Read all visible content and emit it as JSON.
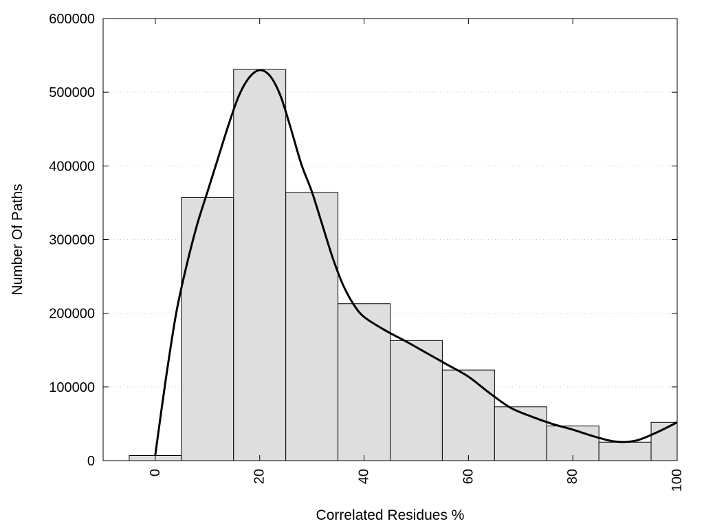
{
  "chart_data": {
    "type": "bar",
    "xlabel": "Correlated Residues %",
    "ylabel": "Number Of Paths",
    "xlim": [
      -10,
      100
    ],
    "ylim": [
      0,
      600000
    ],
    "grid": "horizontal-dotted",
    "bar_color": "#dedede",
    "x_ticks": [
      "0",
      "20",
      "40",
      "60",
      "80",
      "100"
    ],
    "y_ticks": [
      "0",
      "100000",
      "200000",
      "300000",
      "400000",
      "500000",
      "600000"
    ],
    "bar_width": 10,
    "bars": [
      {
        "x": 0,
        "value": 7000
      },
      {
        "x": 10,
        "value": 357000
      },
      {
        "x": 20,
        "value": 531000
      },
      {
        "x": 30,
        "value": 364000
      },
      {
        "x": 40,
        "value": 213000
      },
      {
        "x": 50,
        "value": 163000
      },
      {
        "x": 60,
        "value": 123000
      },
      {
        "x": 70,
        "value": 73000
      },
      {
        "x": 80,
        "value": 47000
      },
      {
        "x": 90,
        "value": 25000
      },
      {
        "x": 100,
        "value": 52000
      }
    ],
    "series": [
      {
        "type": "line",
        "color": "#000000",
        "points": [
          [
            0,
            8000
          ],
          [
            2,
            110000
          ],
          [
            4,
            200000
          ],
          [
            6,
            265000
          ],
          [
            8,
            320000
          ],
          [
            10,
            365000
          ],
          [
            12,
            410000
          ],
          [
            14,
            455000
          ],
          [
            16,
            495000
          ],
          [
            18,
            520000
          ],
          [
            20,
            530000
          ],
          [
            22,
            522000
          ],
          [
            24,
            495000
          ],
          [
            26,
            450000
          ],
          [
            28,
            402000
          ],
          [
            30,
            365000
          ],
          [
            32,
            320000
          ],
          [
            34,
            275000
          ],
          [
            36,
            238000
          ],
          [
            38,
            212000
          ],
          [
            40,
            195000
          ],
          [
            44,
            177000
          ],
          [
            48,
            162000
          ],
          [
            52,
            146000
          ],
          [
            56,
            130000
          ],
          [
            60,
            114000
          ],
          [
            64,
            92000
          ],
          [
            68,
            72000
          ],
          [
            72,
            60000
          ],
          [
            76,
            50000
          ],
          [
            80,
            42000
          ],
          [
            84,
            33000
          ],
          [
            88,
            26000
          ],
          [
            92,
            27000
          ],
          [
            96,
            38000
          ],
          [
            100,
            52000
          ]
        ]
      }
    ]
  }
}
